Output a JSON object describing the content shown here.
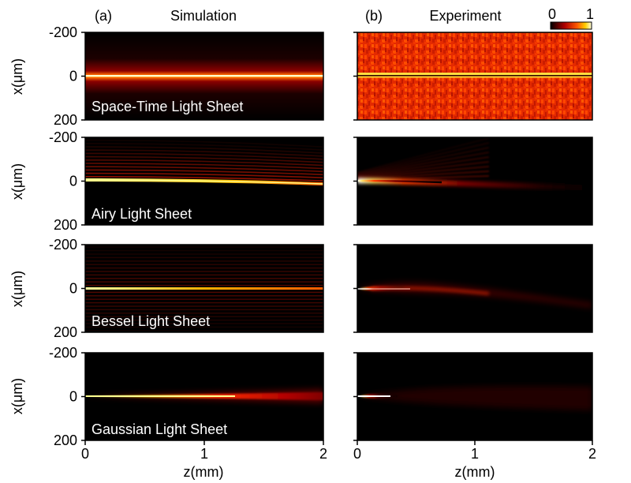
{
  "figure": {
    "columns": [
      {
        "label": "(a)",
        "title": "Simulation"
      },
      {
        "label": "(b)",
        "title": "Experiment"
      }
    ],
    "rows": [
      {
        "label": "Space-Time Light Sheet"
      },
      {
        "label": "Airy Light Sheet"
      },
      {
        "label": "Bessel Light Sheet"
      },
      {
        "label": "Gaussian Light Sheet"
      }
    ],
    "colorbar": {
      "min_label": "0",
      "max_label": "1"
    }
  },
  "chart_data": {
    "type": "heatmap",
    "xlabel": "z(mm)",
    "ylabel": "x(μm)",
    "xlim": [
      0,
      2
    ],
    "ylim": [
      -200,
      200
    ],
    "x_ticks": [
      "0",
      "1",
      "2"
    ],
    "y_ticks": [
      "-200",
      "0",
      "200"
    ],
    "colorbar_range": [
      0,
      1
    ],
    "colormap": "hot",
    "colors": {
      "background": "#000000",
      "low": "#8a0000",
      "mid": "#ff3a00",
      "high": "#ffff60"
    },
    "panels": [
      {
        "row": "Space-Time Light Sheet",
        "column": "Simulation"
      },
      {
        "row": "Space-Time Light Sheet",
        "column": "Experiment"
      },
      {
        "row": "Airy Light Sheet",
        "column": "Simulation"
      },
      {
        "row": "Airy Light Sheet",
        "column": "Experiment"
      },
      {
        "row": "Bessel Light Sheet",
        "column": "Simulation"
      },
      {
        "row": "Bessel Light Sheet",
        "column": "Experiment"
      },
      {
        "row": "Gaussian Light Sheet",
        "column": "Simulation"
      },
      {
        "row": "Gaussian Light Sheet",
        "column": "Experiment"
      }
    ]
  }
}
